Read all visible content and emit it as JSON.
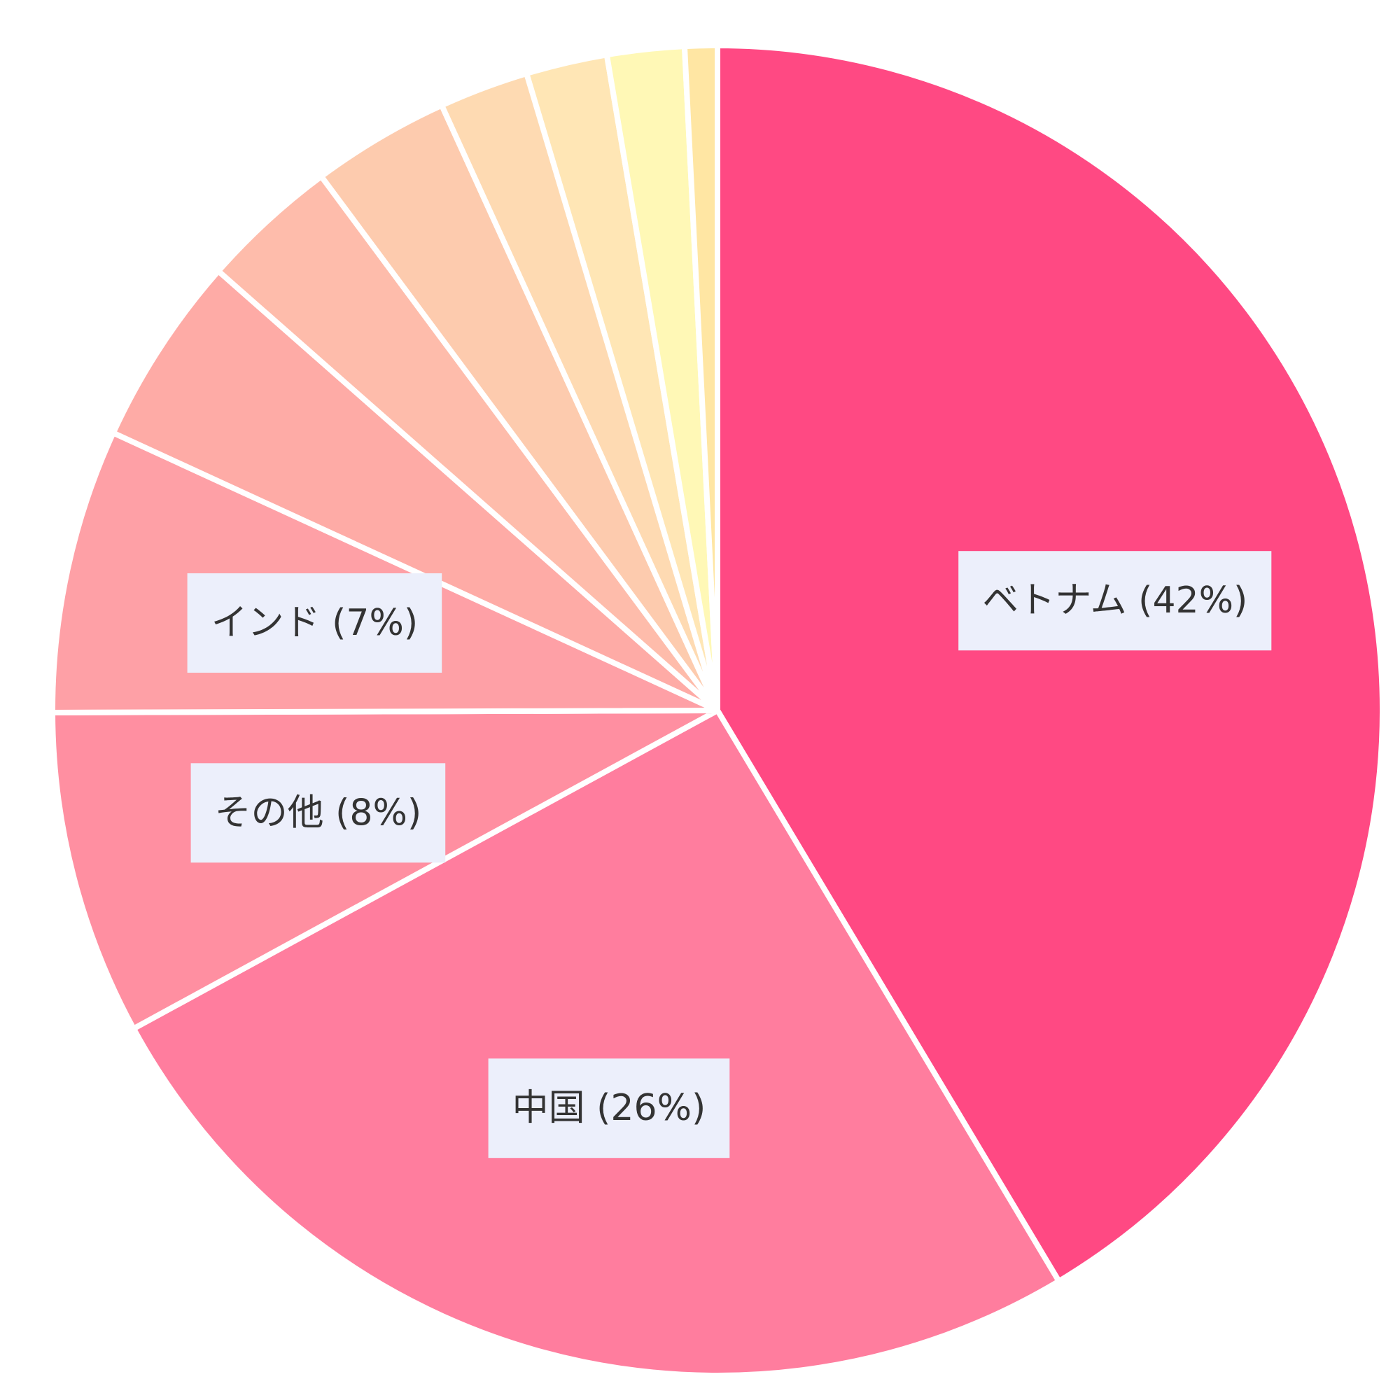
{
  "chart_data": {
    "type": "pie",
    "start_angle_deg": 0,
    "direction": "clockwise",
    "slices": [
      {
        "label": "ベトナム",
        "value": 42,
        "display": "ベトナム (42%)",
        "color": "#ff4983",
        "show_label": true
      },
      {
        "label": "中国",
        "value": 26,
        "display": "中国 (26%)",
        "color": "#ff7d9e",
        "show_label": true
      },
      {
        "label": "その他",
        "value": 8,
        "display": "その他 (8%)",
        "color": "#ff8fa1",
        "show_label": true
      },
      {
        "label": "インド",
        "value": 7,
        "display": "インド (7%)",
        "color": "#fea0a6",
        "show_label": true
      },
      {
        "label": "",
        "value": 4.7,
        "display": "",
        "color": "#feaba6",
        "show_label": false
      },
      {
        "label": "",
        "value": 3.4,
        "display": "",
        "color": "#febcab",
        "show_label": false
      },
      {
        "label": "",
        "value": 3.4,
        "display": "",
        "color": "#fdcbae",
        "show_label": false
      },
      {
        "label": "",
        "value": 2.2,
        "display": "",
        "color": "#fedab2",
        "show_label": false
      },
      {
        "label": "",
        "value": 2.0,
        "display": "",
        "color": "#ffe6b5",
        "show_label": false
      },
      {
        "label": "",
        "value": 1.9,
        "display": "",
        "color": "#fff8b6",
        "show_label": false
      },
      {
        "label": "",
        "value": 0.8,
        "display": "",
        "color": "#ffe6a3",
        "show_label": false
      }
    ],
    "label_background": "#eceffb",
    "label_color": "#333333",
    "background": "#ffffff"
  }
}
